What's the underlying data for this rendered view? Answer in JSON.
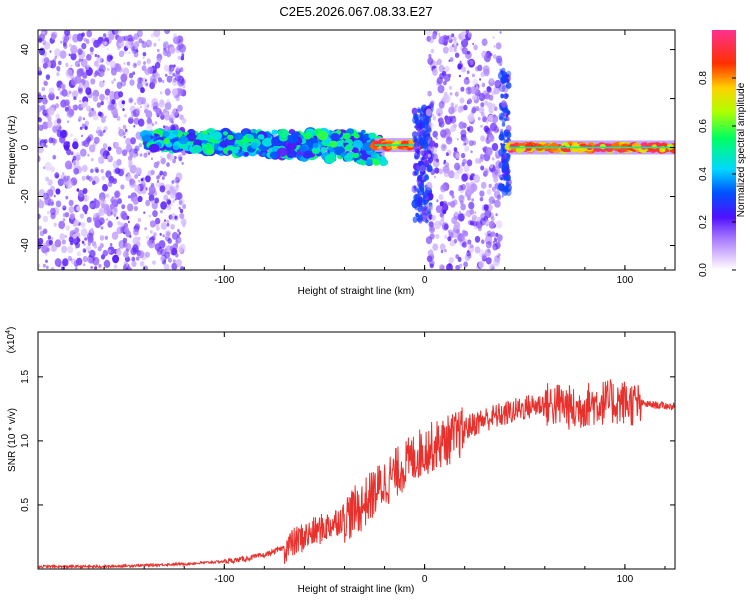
{
  "title": "C2E5.2026.067.08.33.E27",
  "chart_data": [
    {
      "type": "heatmap",
      "xlabel": "Height of straight line (km)",
      "ylabel": "Frequency (Hz)",
      "xlim": [
        -193,
        125
      ],
      "ylim": [
        -50,
        48
      ],
      "xticks": [
        -100,
        0,
        100
      ],
      "yticks": [
        -40,
        -20,
        0,
        20,
        40
      ],
      "colorbar": {
        "label": "Normalized spectral amplitude",
        "range": [
          0,
          1
        ],
        "ticks": [
          0.0,
          0.2,
          0.4,
          0.6,
          0.8
        ]
      },
      "features": [
        {
          "name": "noise-region-left",
          "x_range": [
            -193,
            -120
          ],
          "freq_range": [
            -50,
            48
          ],
          "amplitude": 0.15
        },
        {
          "name": "dispersive-signal",
          "x_range": [
            -140,
            -20
          ],
          "freq_center": [
            3,
            0
          ],
          "amplitude": 0.45
        },
        {
          "name": "narrow-signal-a",
          "x_range": [
            -25,
            -2
          ],
          "freq_center": [
            1,
            1
          ],
          "amplitude": 0.85
        },
        {
          "name": "ringing-at-zero",
          "x_range": [
            -5,
            3
          ],
          "freq_range": [
            -30,
            16
          ],
          "amplitude": 0.3
        },
        {
          "name": "noise-region-mid",
          "x_range": [
            2,
            38
          ],
          "freq_range": [
            -50,
            48
          ],
          "amplitude": 0.15
        },
        {
          "name": "ringing-at-40",
          "x_range": [
            38,
            42
          ],
          "freq_range": [
            -20,
            32
          ],
          "amplitude": 0.25
        },
        {
          "name": "narrow-signal-b",
          "x_range": [
            42,
            125
          ],
          "freq_center": [
            0,
            0
          ],
          "amplitude": 0.9
        }
      ]
    },
    {
      "type": "line",
      "xlabel": "Height of straight line (km)",
      "ylabel": "SNR (10 * v/v)",
      "yscale_label": "(x10",
      "yscale_exp": "4",
      "yscale_close": ")",
      "xlim": [
        -193,
        125
      ],
      "ylim": [
        0,
        1.85
      ],
      "xticks": [
        -100,
        0,
        100
      ],
      "yticks": [
        0.5,
        1.0,
        1.5
      ],
      "series": [
        {
          "name": "SNR",
          "color": "#e8302c",
          "x": [
            -193,
            -160,
            -140,
            -120,
            -100,
            -90,
            -80,
            -70,
            -62,
            -55,
            -48,
            -40,
            -32,
            -25,
            -18,
            -12,
            -6,
            0,
            8,
            15,
            22,
            30,
            40,
            50,
            60,
            70,
            75,
            80,
            90,
            100,
            110,
            125
          ],
          "y": [
            0.02,
            0.02,
            0.03,
            0.04,
            0.06,
            0.08,
            0.11,
            0.17,
            0.25,
            0.3,
            0.35,
            0.42,
            0.5,
            0.62,
            0.72,
            0.8,
            0.88,
            0.95,
            1.0,
            1.05,
            1.12,
            1.18,
            1.22,
            1.27,
            1.3,
            1.3,
            1.25,
            1.3,
            1.32,
            1.32,
            1.29,
            1.27
          ]
        }
      ]
    }
  ]
}
